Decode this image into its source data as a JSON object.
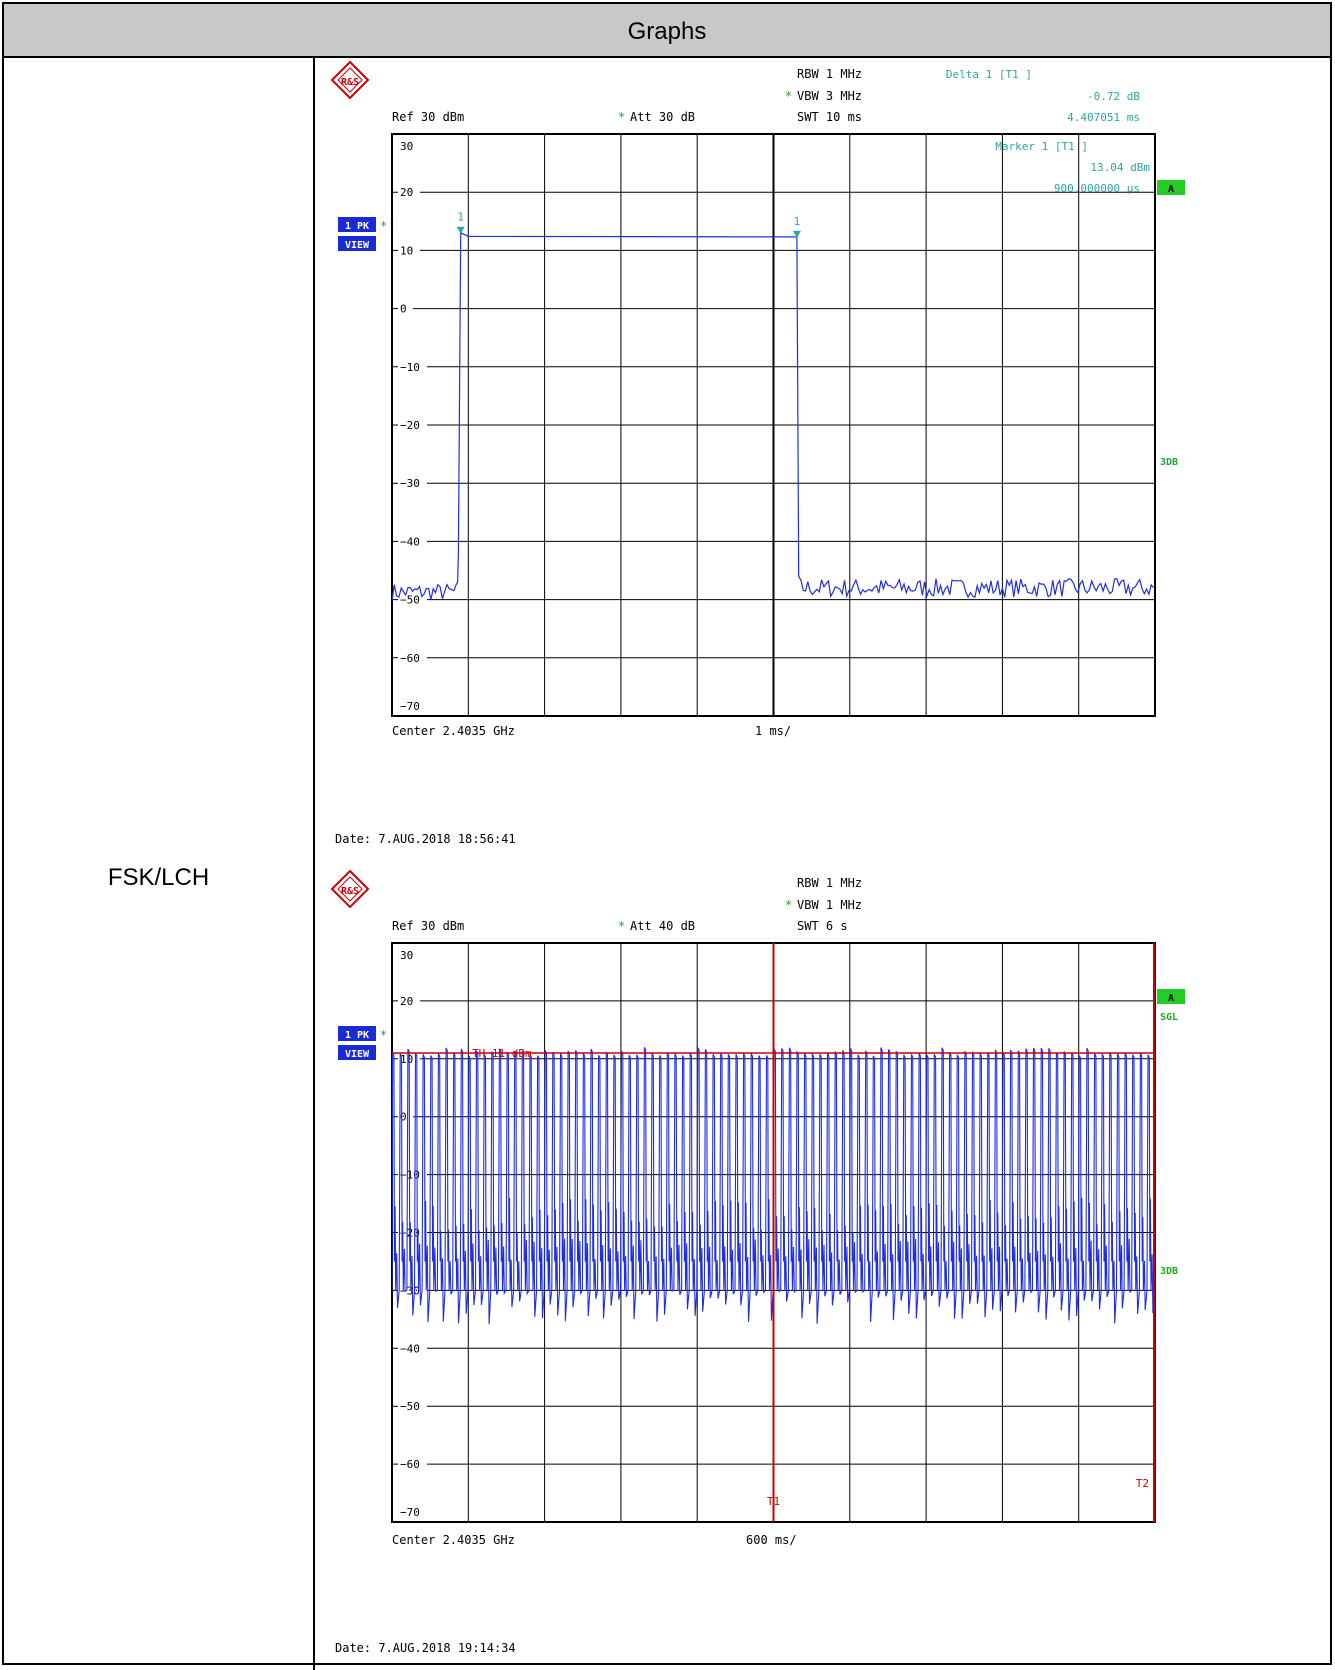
{
  "table": {
    "header": "Graphs",
    "row_label": "FSK/LCH"
  },
  "charts": [
    {
      "logo_text": "R&S",
      "header_left": {
        "ref": "Ref   30 dBm",
        "att": "Att   30 dB"
      },
      "header_mid": {
        "rbw": "RBW  1 MHz",
        "vbw": "VBW  3 MHz",
        "swt": "SWT  10 ms"
      },
      "marker_text": {
        "delta_title": "Delta 1 [T1 ]",
        "delta_value": "-0.72 dB",
        "delta_time": "4.407051 ms",
        "marker_title": "Marker 1 [T1 ]",
        "marker_value": "13.04 dBm",
        "marker_time": "900.000000 µs"
      },
      "left_badges": {
        "trace": "1 PK",
        "view": "VIEW"
      },
      "right_badges": {
        "a": "A",
        "mode": "",
        "db3": "3DB"
      },
      "marker_labels": [
        "1",
        "1"
      ],
      "footer": {
        "center": "Center 2.4035 GHz",
        "span": "1 ms/"
      },
      "date": "Date: 7.AUG.2018  18:56:41",
      "threshold_label": "",
      "bottom_labels": []
    },
    {
      "logo_text": "R&S",
      "header_left": {
        "ref": "Ref   30 dBm",
        "att": "Att   40 dB"
      },
      "header_mid": {
        "rbw": "RBW  1 MHz",
        "vbw": "VBW  1 MHz",
        "swt": "SWT  6 s"
      },
      "marker_text": null,
      "left_badges": {
        "trace": "1 PK",
        "view": "VIEW"
      },
      "right_badges": {
        "a": "A",
        "mode": "SGL",
        "db3": "3DB"
      },
      "marker_labels": [],
      "footer": {
        "center": "Center 2.4035 GHz",
        "span": "600 ms/"
      },
      "date": "Date: 7.AUG.2018  19:14:34",
      "threshold_label": "TH  11 dBm",
      "bottom_labels": [
        "T1",
        "T2"
      ]
    }
  ],
  "colors": {
    "trace": "#1f2ee6",
    "marker": "#2aa6a6",
    "badge_blue": "#1a2bd6",
    "badge_green": "#22cc22",
    "red": "#cc0000"
  },
  "chart_data": [
    {
      "type": "line",
      "xlabel": "",
      "ylabel": "",
      "x_unit": "ms",
      "xlim": [
        0,
        10
      ],
      "ylim": [
        -70,
        30
      ],
      "yticks": [
        30,
        20,
        10,
        0,
        -10,
        -20,
        -30,
        -40,
        -50,
        -60,
        -70
      ],
      "grid": true,
      "series": [
        {
          "x": [
            0,
            0.3,
            0.6,
            0.85,
            0.88,
            0.9,
            5.3,
            5.33,
            5.36,
            6,
            7,
            8,
            9,
            10
          ],
          "values": [
            -49,
            -48,
            -49,
            -47,
            -42,
            13.04,
            12.3,
            -46,
            -48,
            -48,
            -48,
            -48,
            -48,
            -48
          ]
        }
      ],
      "markers": [
        {
          "x": 0.9,
          "y": 13.04
        },
        {
          "x": 5.307051,
          "y": 12.32
        }
      ]
    },
    {
      "type": "line",
      "xlabel": "",
      "ylabel": "",
      "x_unit": "ms",
      "xlim": [
        0,
        6000
      ],
      "ylim": [
        -70,
        30
      ],
      "yticks": [
        30,
        20,
        10,
        0,
        -10,
        -20,
        -30,
        -40,
        -50,
        -60,
        -70
      ],
      "grid": true,
      "threshold": 11,
      "pulse_top": 12,
      "pulse_bottom": -30,
      "pulse_count": 100,
      "series": [
        {
          "x": [
            0,
            6000
          ],
          "values": [
            12,
            -30
          ]
        }
      ],
      "vlines": [
        {
          "x": 3000
        },
        {
          "x": 6000
        }
      ]
    }
  ]
}
